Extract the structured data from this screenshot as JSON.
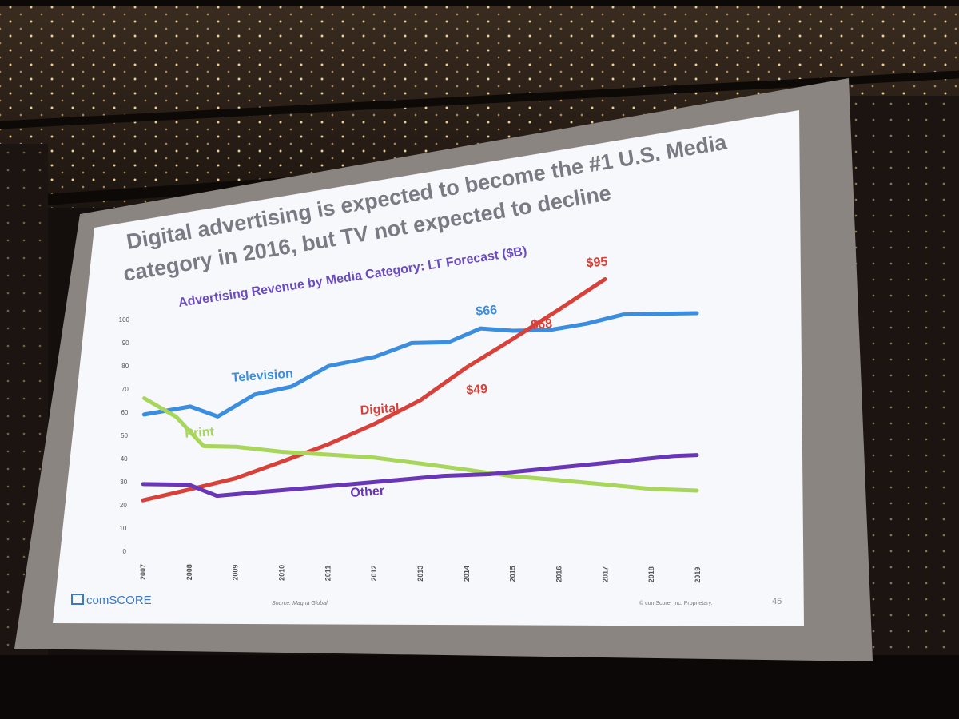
{
  "slide": {
    "title_line1": "Digital advertising is expected to become the #1 U.S. Media",
    "title_line2": "category in 2016, but TV not expected to decline",
    "subtitle": "Advertising Revenue by Media Category: LT Forecast ($B)",
    "logo_text": "comSCORE",
    "source": "Source: Magna Global",
    "copyright": "© comScore, Inc. Proprietary.",
    "page_number": "45"
  },
  "colors": {
    "television": "#3b8de0",
    "digital": "#d8413a",
    "print": "#a7d65a",
    "other": "#6a36b8",
    "title": "#7a7a84",
    "subtitle": "#6b4bc0"
  },
  "chart_data": {
    "type": "line",
    "title": "Advertising Revenue by Media Category: LT Forecast ($B)",
    "x": [
      "2007",
      "2008",
      "2009",
      "2010",
      "2011",
      "2012",
      "2013",
      "2014",
      "2015",
      "2016",
      "2017",
      "2018",
      "2019"
    ],
    "ylim": [
      0,
      100
    ],
    "yticks": [
      "0",
      "10",
      "20",
      "30",
      "40",
      "50",
      "60",
      "70",
      "80",
      "90",
      "100"
    ],
    "grid": false,
    "series": [
      {
        "name": "Television",
        "color": "#3b8de0",
        "values": [
          [
            2007,
            59
          ],
          [
            2008,
            61
          ],
          [
            2008.6,
            56
          ],
          [
            2009.4,
            64
          ],
          [
            2010.2,
            66
          ],
          [
            2011,
            73
          ],
          [
            2012,
            75
          ],
          [
            2012.8,
            79
          ],
          [
            2013.6,
            78
          ],
          [
            2014.3,
            82
          ],
          [
            2015,
            80
          ],
          [
            2015.8,
            79
          ],
          [
            2016.6,
            80
          ],
          [
            2017.4,
            82
          ],
          [
            2018.2,
            81
          ],
          [
            2019,
            80
          ]
        ]
      },
      {
        "name": "Digital",
        "color": "#d8413a",
        "values": [
          [
            2007,
            22
          ],
          [
            2008,
            26
          ],
          [
            2009,
            30
          ],
          [
            2010,
            36
          ],
          [
            2011,
            42
          ],
          [
            2012,
            49
          ],
          [
            2013,
            57
          ],
          [
            2014,
            68
          ],
          [
            2015,
            77
          ],
          [
            2016,
            86
          ],
          [
            2017,
            95
          ]
        ]
      },
      {
        "name": "Print",
        "color": "#a7d65a",
        "values": [
          [
            2007,
            66
          ],
          [
            2007.7,
            57
          ],
          [
            2008.3,
            44
          ],
          [
            2009,
            43
          ],
          [
            2010,
            40
          ],
          [
            2011,
            38
          ],
          [
            2012,
            36
          ],
          [
            2013,
            33
          ],
          [
            2014,
            30
          ],
          [
            2015,
            27
          ],
          [
            2016,
            25
          ],
          [
            2017,
            23
          ],
          [
            2018,
            21
          ],
          [
            2019,
            20
          ]
        ]
      },
      {
        "name": "Other",
        "color": "#6a36b8",
        "values": [
          [
            2007,
            29
          ],
          [
            2008,
            28
          ],
          [
            2008.6,
            23
          ],
          [
            2009.5,
            24
          ],
          [
            2010.5,
            25
          ],
          [
            2011.5,
            26
          ],
          [
            2012.5,
            27
          ],
          [
            2013.5,
            28
          ],
          [
            2014.5,
            28
          ],
          [
            2015.5,
            29
          ],
          [
            2016.5,
            30
          ],
          [
            2017.5,
            31
          ],
          [
            2018.5,
            32
          ],
          [
            2019,
            32
          ]
        ]
      }
    ],
    "annotations": [
      {
        "text": "Television",
        "x": 2008.9,
        "y": 70,
        "color": "#3b8de0"
      },
      {
        "text": "Print",
        "x": 2007.9,
        "y": 48,
        "color": "#a7d65a"
      },
      {
        "text": "Digital",
        "x": 2011.7,
        "y": 53,
        "color": "#d8413a"
      },
      {
        "text": "Other",
        "x": 2011.5,
        "y": 21,
        "color": "#6a36b8"
      },
      {
        "text": "$66",
        "x": 2014.2,
        "y": 87,
        "color": "#3b8de0"
      },
      {
        "text": "$49",
        "x": 2014.0,
        "y": 58,
        "color": "#d8413a"
      },
      {
        "text": "$68",
        "x": 2015.4,
        "y": 80,
        "color": "#d8413a"
      },
      {
        "text": "$95",
        "x": 2016.6,
        "y": 100,
        "color": "#d8413a"
      }
    ]
  }
}
